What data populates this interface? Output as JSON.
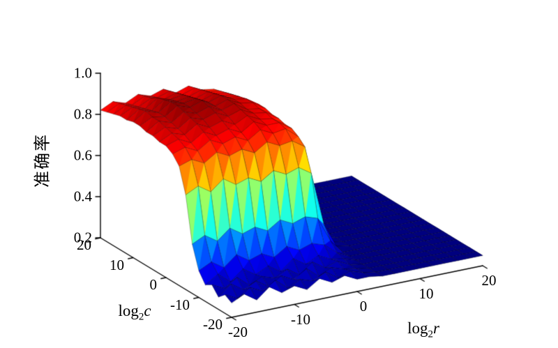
{
  "chart_data": {
    "type": "surface",
    "title": "",
    "zlabel": "准确率",
    "xlabel": {
      "prefix": "log",
      "sub": "2",
      "var": "r"
    },
    "ylabel": {
      "prefix": "log",
      "sub": "2",
      "var": "c"
    },
    "zlim": [
      0.2,
      1.0
    ],
    "colormap": "jet",
    "clim": [
      0.25,
      0.92
    ],
    "z_ticks": [
      {
        "value": 0.2,
        "label": "0.2"
      },
      {
        "value": 0.4,
        "label": "0.4"
      },
      {
        "value": 0.6,
        "label": "0.6"
      },
      {
        "value": 0.8,
        "label": "0.8"
      },
      {
        "value": 1.0,
        "label": "1.0"
      }
    ],
    "c_ticks": [
      {
        "value": 20,
        "label": "20"
      },
      {
        "value": 10,
        "label": "10"
      },
      {
        "value": 0,
        "label": "0"
      },
      {
        "value": -10,
        "label": "-10"
      },
      {
        "value": -20,
        "label": "-20"
      }
    ],
    "r_ticks": [
      {
        "value": -20,
        "label": "-20"
      },
      {
        "value": -10,
        "label": "-10"
      },
      {
        "value": 0,
        "label": "0"
      },
      {
        "value": 10,
        "label": "10"
      },
      {
        "value": 20,
        "label": "20"
      }
    ],
    "x_r_values": [
      -20,
      -18,
      -16,
      -14,
      -12,
      -10,
      -8,
      -6,
      -4,
      -2,
      0,
      2,
      4,
      6,
      8,
      10,
      12,
      14,
      16,
      18,
      20
    ],
    "y_c_values": [
      -20,
      -18,
      -16,
      -14,
      -12,
      -10,
      -8,
      -6,
      -4,
      -2,
      0,
      2,
      4,
      6,
      8,
      10,
      12,
      14,
      16,
      18,
      20
    ],
    "z_accuracy": [
      [
        0.27,
        0.3,
        0.26,
        0.31,
        0.27,
        0.29,
        0.26,
        0.3,
        0.27,
        0.29,
        0.26,
        0.26,
        0.25,
        0.25,
        0.25,
        0.25,
        0.25,
        0.25,
        0.25,
        0.25,
        0.25
      ],
      [
        0.29,
        0.26,
        0.3,
        0.27,
        0.31,
        0.26,
        0.29,
        0.27,
        0.3,
        0.26,
        0.28,
        0.26,
        0.25,
        0.25,
        0.25,
        0.25,
        0.25,
        0.25,
        0.25,
        0.25,
        0.25
      ],
      [
        0.26,
        0.31,
        0.27,
        0.3,
        0.26,
        0.3,
        0.27,
        0.31,
        0.26,
        0.29,
        0.27,
        0.26,
        0.25,
        0.25,
        0.25,
        0.25,
        0.25,
        0.25,
        0.25,
        0.25,
        0.25
      ],
      [
        0.3,
        0.27,
        0.31,
        0.26,
        0.29,
        0.27,
        0.3,
        0.26,
        0.31,
        0.27,
        0.29,
        0.26,
        0.25,
        0.25,
        0.25,
        0.25,
        0.25,
        0.25,
        0.25,
        0.25,
        0.25
      ],
      [
        0.28,
        0.32,
        0.27,
        0.32,
        0.28,
        0.31,
        0.27,
        0.32,
        0.28,
        0.31,
        0.28,
        0.27,
        0.25,
        0.25,
        0.25,
        0.25,
        0.25,
        0.25,
        0.25,
        0.25,
        0.25
      ],
      [
        0.33,
        0.36,
        0.32,
        0.37,
        0.33,
        0.35,
        0.32,
        0.36,
        0.33,
        0.35,
        0.33,
        0.28,
        0.25,
        0.25,
        0.25,
        0.25,
        0.25,
        0.25,
        0.25,
        0.25,
        0.25
      ],
      [
        0.44,
        0.47,
        0.43,
        0.48,
        0.44,
        0.46,
        0.43,
        0.47,
        0.44,
        0.46,
        0.44,
        0.32,
        0.25,
        0.25,
        0.25,
        0.25,
        0.25,
        0.25,
        0.25,
        0.25,
        0.25
      ],
      [
        0.66,
        0.69,
        0.65,
        0.7,
        0.66,
        0.68,
        0.65,
        0.69,
        0.66,
        0.68,
        0.64,
        0.38,
        0.26,
        0.25,
        0.25,
        0.25,
        0.25,
        0.25,
        0.25,
        0.25,
        0.25
      ],
      [
        0.78,
        0.8,
        0.77,
        0.81,
        0.78,
        0.8,
        0.77,
        0.81,
        0.78,
        0.79,
        0.75,
        0.45,
        0.26,
        0.25,
        0.25,
        0.25,
        0.25,
        0.25,
        0.25,
        0.25,
        0.25
      ],
      [
        0.82,
        0.84,
        0.81,
        0.85,
        0.82,
        0.84,
        0.81,
        0.85,
        0.82,
        0.83,
        0.78,
        0.52,
        0.27,
        0.25,
        0.25,
        0.25,
        0.25,
        0.25,
        0.25,
        0.25,
        0.25
      ],
      [
        0.84,
        0.86,
        0.83,
        0.87,
        0.84,
        0.86,
        0.83,
        0.87,
        0.84,
        0.84,
        0.8,
        0.33,
        0.27,
        0.25,
        0.25,
        0.25,
        0.25,
        0.25,
        0.25,
        0.25,
        0.25
      ],
      [
        0.84,
        0.87,
        0.85,
        0.89,
        0.86,
        0.88,
        0.85,
        0.88,
        0.85,
        0.84,
        0.8,
        0.55,
        0.27,
        0.25,
        0.25,
        0.25,
        0.25,
        0.25,
        0.25,
        0.25,
        0.25
      ],
      [
        0.85,
        0.88,
        0.86,
        0.9,
        0.88,
        0.9,
        0.87,
        0.89,
        0.86,
        0.85,
        0.81,
        0.56,
        0.27,
        0.25,
        0.25,
        0.25,
        0.25,
        0.25,
        0.25,
        0.25,
        0.25
      ],
      [
        0.85,
        0.89,
        0.87,
        0.91,
        0.89,
        0.91,
        0.88,
        0.9,
        0.86,
        0.85,
        0.81,
        0.56,
        0.27,
        0.25,
        0.25,
        0.25,
        0.25,
        0.25,
        0.25,
        0.25,
        0.25
      ],
      [
        0.86,
        0.89,
        0.88,
        0.92,
        0.9,
        0.92,
        0.88,
        0.9,
        0.87,
        0.86,
        0.82,
        0.56,
        0.27,
        0.25,
        0.25,
        0.25,
        0.25,
        0.25,
        0.25,
        0.25,
        0.25
      ],
      [
        0.86,
        0.9,
        0.88,
        0.92,
        0.9,
        0.91,
        0.88,
        0.9,
        0.87,
        0.86,
        0.82,
        0.55,
        0.27,
        0.25,
        0.25,
        0.25,
        0.25,
        0.25,
        0.25,
        0.25,
        0.25
      ],
      [
        0.85,
        0.89,
        0.87,
        0.91,
        0.89,
        0.9,
        0.87,
        0.89,
        0.86,
        0.85,
        0.81,
        0.55,
        0.26,
        0.25,
        0.25,
        0.25,
        0.25,
        0.25,
        0.25,
        0.25,
        0.25
      ],
      [
        0.85,
        0.88,
        0.86,
        0.9,
        0.88,
        0.89,
        0.86,
        0.88,
        0.85,
        0.84,
        0.8,
        0.54,
        0.26,
        0.25,
        0.25,
        0.25,
        0.25,
        0.25,
        0.25,
        0.25,
        0.25
      ],
      [
        0.84,
        0.87,
        0.85,
        0.88,
        0.86,
        0.88,
        0.85,
        0.87,
        0.84,
        0.83,
        0.8,
        0.54,
        0.26,
        0.25,
        0.25,
        0.25,
        0.25,
        0.25,
        0.25,
        0.25,
        0.25
      ],
      [
        0.83,
        0.86,
        0.84,
        0.87,
        0.85,
        0.87,
        0.84,
        0.86,
        0.83,
        0.82,
        0.79,
        0.53,
        0.26,
        0.25,
        0.25,
        0.25,
        0.25,
        0.25,
        0.25,
        0.25,
        0.25
      ],
      [
        0.82,
        0.85,
        0.83,
        0.86,
        0.84,
        0.86,
        0.83,
        0.85,
        0.82,
        0.81,
        0.78,
        0.52,
        0.26,
        0.25,
        0.25,
        0.25,
        0.25,
        0.25,
        0.25,
        0.25,
        0.25
      ]
    ]
  }
}
